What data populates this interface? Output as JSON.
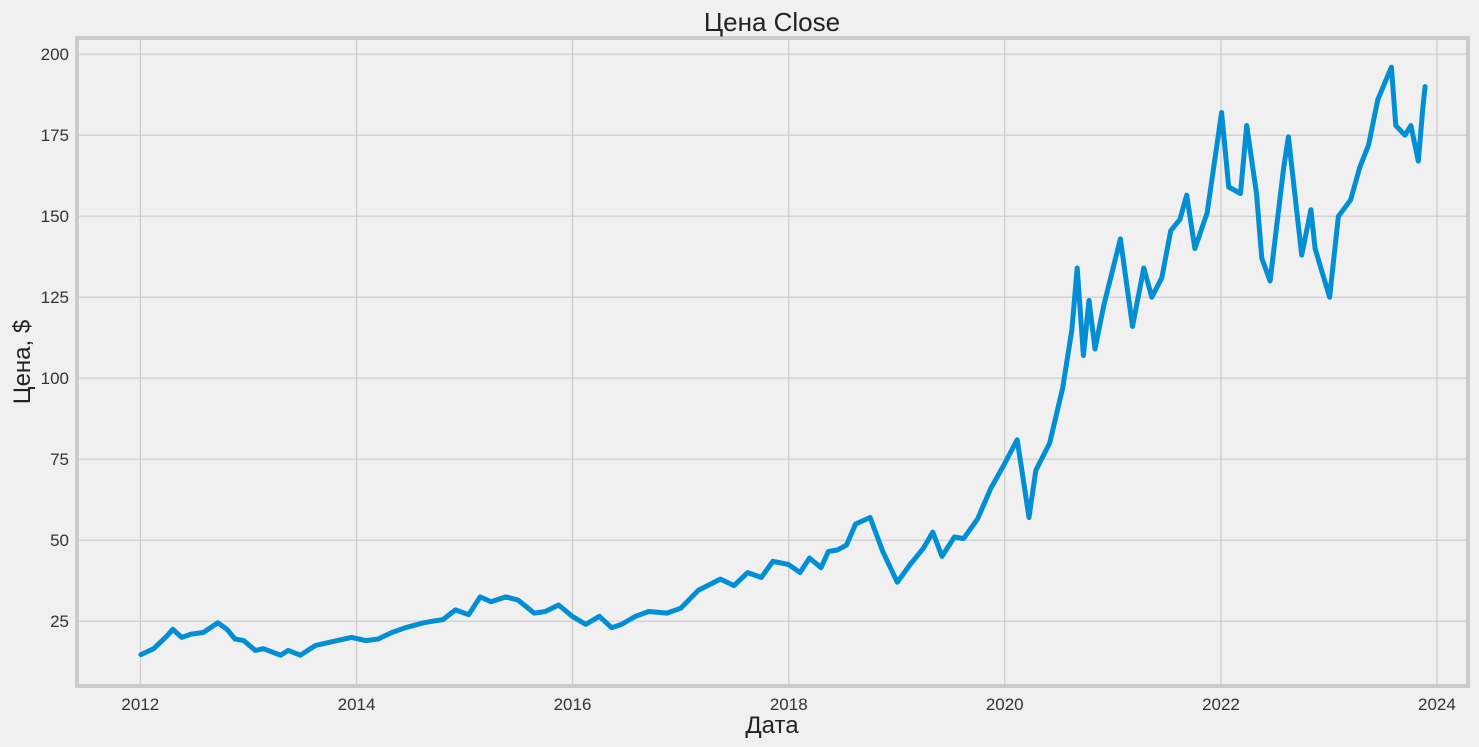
{
  "chart_data": {
    "type": "line",
    "title": "Цена Close",
    "xlabel": "Дата",
    "ylabel": "Цена, $",
    "xlim": [
      "2011-06-01",
      "2024-04-15"
    ],
    "ylim": [
      5,
      205
    ],
    "x_ticks": [
      "2012",
      "2014",
      "2016",
      "2018",
      "2020",
      "2022",
      "2024"
    ],
    "y_ticks": [
      25,
      50,
      75,
      100,
      125,
      150,
      175,
      200
    ],
    "grid": true,
    "legend": "none",
    "series": [
      {
        "color": "#008fd5",
        "x": [
          "2012-01-03",
          "2012-02-15",
          "2012-04-01",
          "2012-04-20",
          "2012-05-20",
          "2012-06-20",
          "2012-08-01",
          "2012-09-19",
          "2012-10-20",
          "2012-11-16",
          "2012-12-15",
          "2013-01-24",
          "2013-02-20",
          "2013-04-19",
          "2013-05-15",
          "2013-06-25",
          "2013-08-15",
          "2013-10-01",
          "2013-12-15",
          "2014-02-01",
          "2014-03-15",
          "2014-04-30",
          "2014-06-15",
          "2014-08-15",
          "2014-09-15",
          "2014-10-20",
          "2014-12-01",
          "2015-01-15",
          "2015-02-23",
          "2015-04-01",
          "2015-05-20",
          "2015-07-01",
          "2015-08-24",
          "2015-10-01",
          "2015-11-15",
          "2015-12-31",
          "2016-02-15",
          "2016-04-01",
          "2016-05-12",
          "2016-06-15",
          "2016-08-01",
          "2016-09-15",
          "2016-11-15",
          "2017-01-01",
          "2017-03-01",
          "2017-05-15",
          "2017-06-30",
          "2017-08-15",
          "2017-09-30",
          "2017-11-08",
          "2017-12-31",
          "2018-02-08",
          "2018-03-12",
          "2018-04-20",
          "2018-05-15",
          "2018-06-15",
          "2018-07-15",
          "2018-08-15",
          "2018-10-03",
          "2018-11-15",
          "2019-01-03",
          "2019-02-15",
          "2019-04-01",
          "2019-05-03",
          "2019-06-03",
          "2019-07-15",
          "2019-08-15",
          "2019-10-01",
          "2019-11-15",
          "2019-12-31",
          "2020-02-12",
          "2020-03-23",
          "2020-04-15",
          "2020-06-01",
          "2020-07-15",
          "2020-08-15",
          "2020-09-02",
          "2020-09-23",
          "2020-10-12",
          "2020-11-01",
          "2020-12-01",
          "2021-01-26",
          "2021-03-08",
          "2021-04-15",
          "2021-05-12",
          "2021-06-15",
          "2021-07-15",
          "2021-08-15",
          "2021-09-07",
          "2021-10-05",
          "2021-11-15",
          "2022-01-03",
          "2022-01-27",
          "2022-03-08",
          "2022-03-29",
          "2022-05-01",
          "2022-05-19",
          "2022-06-16",
          "2022-08-01",
          "2022-08-17",
          "2022-10-01",
          "2022-11-01",
          "2022-11-15",
          "2023-01-03",
          "2023-02-02",
          "2023-03-15",
          "2023-04-15",
          "2023-05-15",
          "2023-06-15",
          "2023-07-31",
          "2023-08-15",
          "2023-09-15",
          "2023-10-05",
          "2023-10-30",
          "2023-11-15",
          "2023-11-22"
        ],
        "y": [
          14.7,
          16.5,
          20.5,
          22.5,
          20.0,
          21.0,
          21.5,
          24.5,
          22.5,
          19.5,
          19.0,
          16.0,
          16.5,
          14.5,
          16.0,
          14.5,
          17.5,
          18.5,
          20.0,
          19.0,
          19.5,
          21.5,
          23.0,
          24.5,
          25.0,
          25.5,
          28.5,
          27.0,
          32.5,
          31.0,
          32.5,
          31.5,
          27.5,
          28.0,
          30.0,
          26.5,
          24.0,
          26.5,
          23.0,
          24.0,
          26.5,
          28.0,
          27.5,
          29.0,
          34.5,
          38.0,
          36.0,
          40.0,
          38.5,
          43.5,
          42.5,
          40.0,
          44.5,
          41.5,
          46.5,
          47.0,
          48.5,
          55.0,
          57.0,
          46.5,
          37.0,
          42.5,
          47.5,
          52.5,
          45.0,
          51.0,
          50.5,
          56.5,
          66.0,
          73.5,
          81.0,
          57.0,
          71.5,
          80.0,
          97.0,
          115.0,
          134.0,
          107.0,
          124.0,
          109.0,
          122.5,
          143.0,
          116.0,
          134.0,
          125.0,
          131.0,
          145.5,
          149.0,
          156.5,
          140.0,
          151.0,
          182.0,
          159.0,
          157.0,
          178.0,
          157.0,
          137.0,
          130.0,
          165.0,
          174.5,
          138.0,
          152.0,
          140.0,
          125.0,
          150.0,
          155.0,
          165.0,
          172.0,
          186.0,
          196.0,
          178.0,
          175.0,
          178.0,
          167.0,
          184.0,
          190.0
        ]
      }
    ]
  }
}
